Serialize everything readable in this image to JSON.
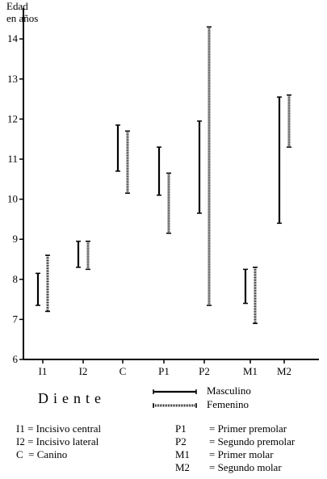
{
  "chart_data": {
    "type": "range",
    "ylabel_line1": "Edad",
    "ylabel_line2": "en años",
    "xlabel": "Diente",
    "ylim": [
      6,
      14.5
    ],
    "yticks": [
      6,
      7,
      8,
      9,
      10,
      11,
      12,
      13,
      14
    ],
    "categories": [
      "I1",
      "I2",
      "C",
      "P1",
      "P2",
      "M1",
      "M2"
    ],
    "series": [
      {
        "name": "Masculino",
        "style": "solid",
        "ranges": [
          [
            7.35,
            8.15
          ],
          [
            8.3,
            8.95
          ],
          [
            10.7,
            11.85
          ],
          [
            10.1,
            11.3
          ],
          [
            9.65,
            11.95
          ],
          [
            7.4,
            8.25
          ],
          [
            9.4,
            12.55
          ]
        ]
      },
      {
        "name": "Femenino",
        "style": "dotted",
        "ranges": [
          [
            7.2,
            8.6
          ],
          [
            8.25,
            8.95
          ],
          [
            10.15,
            11.7
          ],
          [
            9.15,
            10.65
          ],
          [
            7.35,
            14.3
          ],
          [
            6.9,
            8.3
          ],
          [
            11.3,
            12.6
          ]
        ]
      }
    ]
  },
  "key": {
    "left": [
      "I1 = Incisivo central",
      "I2 = Incisivo lateral",
      "C  = Canino"
    ],
    "right": [
      {
        "code": "P1",
        "label": "= Primer premolar"
      },
      {
        "code": "P2",
        "label": "= Segundo premolar"
      },
      {
        "code": "M1",
        "label": "= Primer molar"
      },
      {
        "code": "M2",
        "label": "= Segundo molar"
      }
    ]
  }
}
